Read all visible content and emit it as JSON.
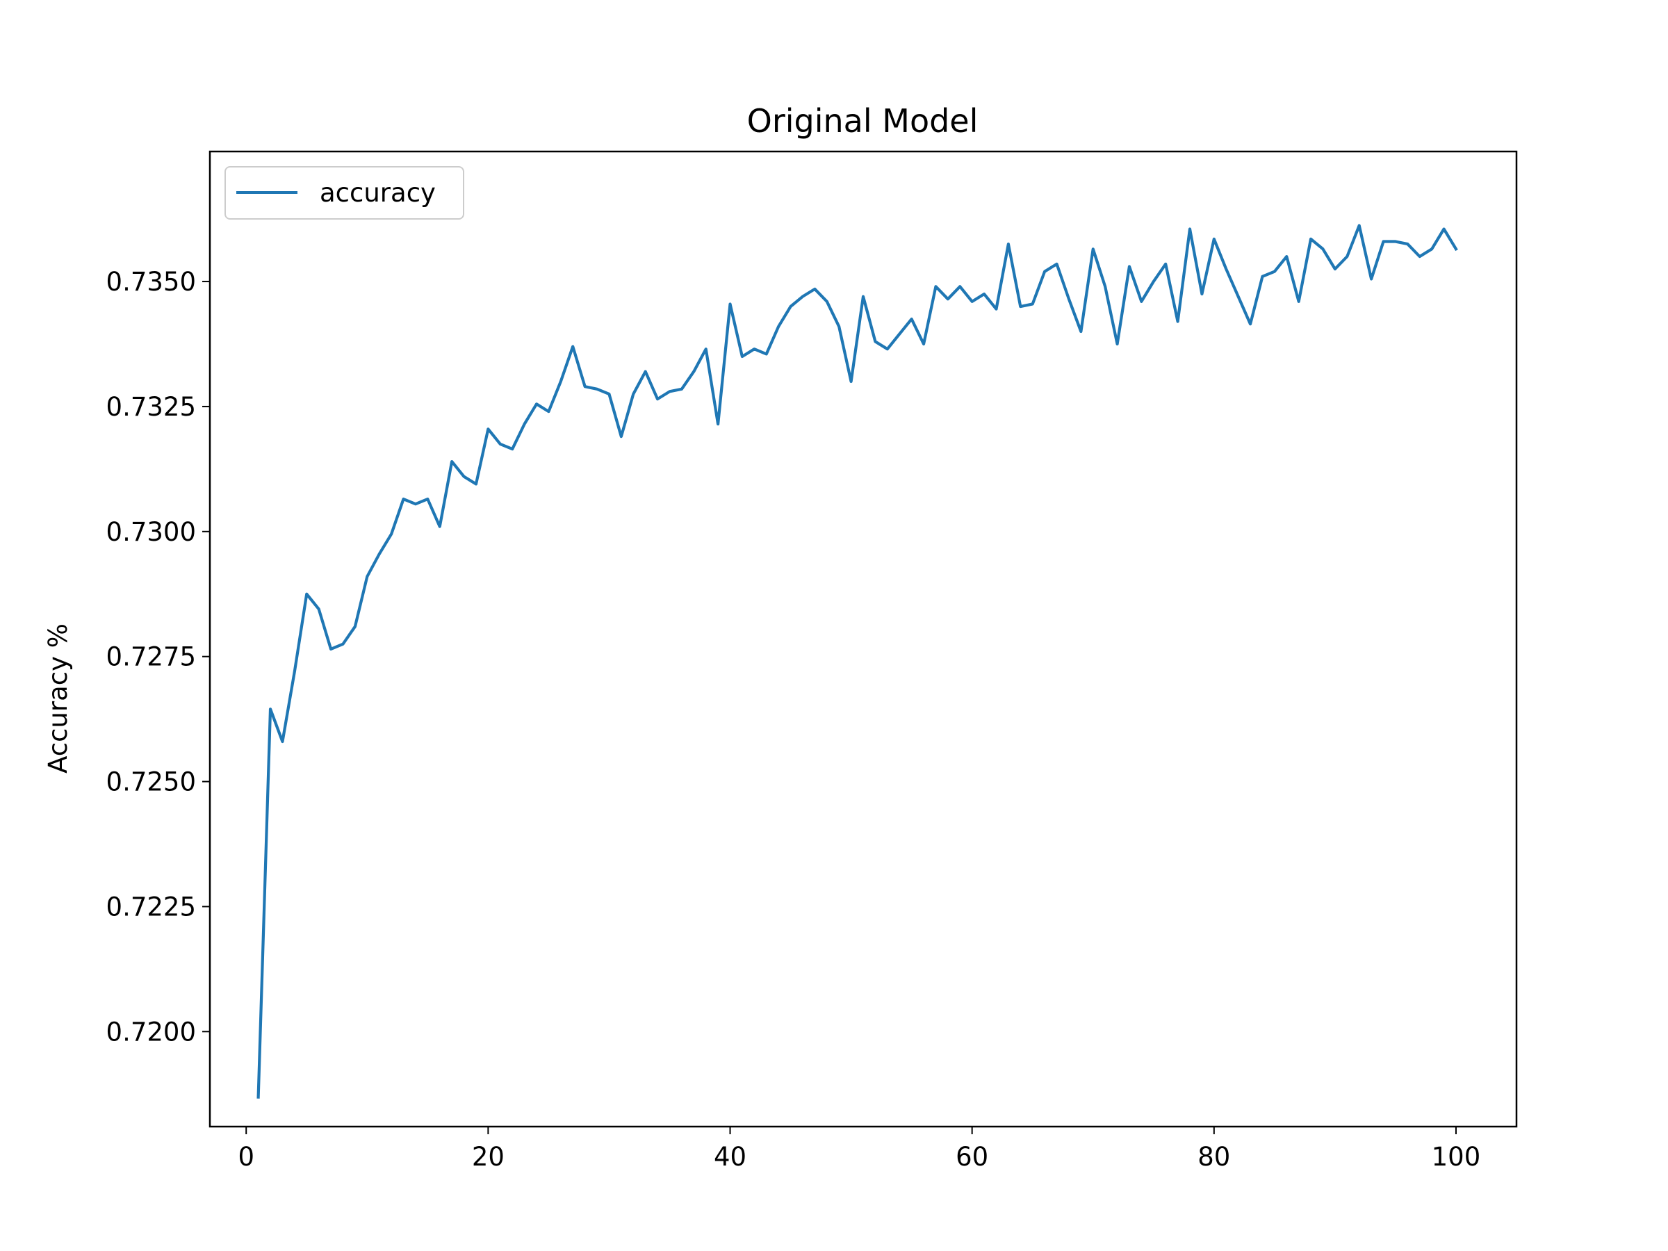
{
  "chart_data": {
    "type": "line",
    "title": "Original Model",
    "xlabel": "",
    "ylabel": "Accuracy %",
    "xlim": [
      -3,
      105
    ],
    "ylim": [
      0.7181,
      0.7376
    ],
    "xticks": [
      0,
      20,
      40,
      60,
      80,
      100
    ],
    "yticks": [
      0.72,
      0.7225,
      0.725,
      0.7275,
      0.73,
      0.7325,
      0.735
    ],
    "ytick_labels": [
      "0.7200",
      "0.7225",
      "0.7250",
      "0.7275",
      "0.7300",
      "0.7325",
      "0.7350"
    ],
    "grid": false,
    "legend": {
      "placement": "top-left",
      "entries": [
        "accuracy"
      ]
    },
    "colors": {
      "series": "#1f77b4"
    },
    "series": [
      {
        "name": "accuracy",
        "x": [
          1,
          2,
          3,
          4,
          5,
          6,
          7,
          8,
          9,
          10,
          11,
          12,
          13,
          14,
          15,
          16,
          17,
          18,
          19,
          20,
          21,
          22,
          23,
          24,
          25,
          26,
          27,
          28,
          29,
          30,
          31,
          32,
          33,
          34,
          35,
          36,
          37,
          38,
          39,
          40,
          41,
          42,
          43,
          44,
          45,
          46,
          47,
          48,
          49,
          50,
          51,
          52,
          53,
          54,
          55,
          56,
          57,
          58,
          59,
          60,
          61,
          62,
          63,
          64,
          65,
          66,
          67,
          68,
          69,
          70,
          71,
          72,
          73,
          74,
          75,
          76,
          77,
          78,
          79,
          80,
          81,
          82,
          83,
          84,
          85,
          86,
          87,
          88,
          89,
          90,
          91,
          92,
          93,
          94,
          95,
          96,
          97,
          98,
          99,
          100
        ],
        "values": [
          0.71869,
          0.72645,
          0.7258,
          0.7272,
          0.72875,
          0.72845,
          0.72765,
          0.72775,
          0.7281,
          0.7291,
          0.72955,
          0.72995,
          0.73065,
          0.73055,
          0.73065,
          0.7301,
          0.7314,
          0.7311,
          0.73095,
          0.73205,
          0.73175,
          0.73165,
          0.73215,
          0.73255,
          0.7324,
          0.733,
          0.7337,
          0.7329,
          0.73285,
          0.73275,
          0.7319,
          0.73275,
          0.7332,
          0.73265,
          0.7328,
          0.73285,
          0.7332,
          0.73365,
          0.73215,
          0.73455,
          0.7335,
          0.73365,
          0.73355,
          0.7341,
          0.7345,
          0.7347,
          0.73485,
          0.7346,
          0.7341,
          0.733,
          0.7347,
          0.7338,
          0.73365,
          0.73395,
          0.73425,
          0.73375,
          0.7349,
          0.73465,
          0.7349,
          0.7346,
          0.73475,
          0.73445,
          0.73575,
          0.7345,
          0.73455,
          0.7352,
          0.73535,
          0.73465,
          0.734,
          0.73565,
          0.7349,
          0.73375,
          0.7353,
          0.7346,
          0.735,
          0.73535,
          0.7342,
          0.73605,
          0.73475,
          0.73585,
          0.73525,
          0.7347,
          0.73415,
          0.7351,
          0.7352,
          0.7355,
          0.7346,
          0.73585,
          0.73565,
          0.73525,
          0.7355,
          0.73612,
          0.73505,
          0.7358,
          0.7358,
          0.73575,
          0.7355,
          0.73565,
          0.73605,
          0.73565
        ]
      }
    ]
  }
}
